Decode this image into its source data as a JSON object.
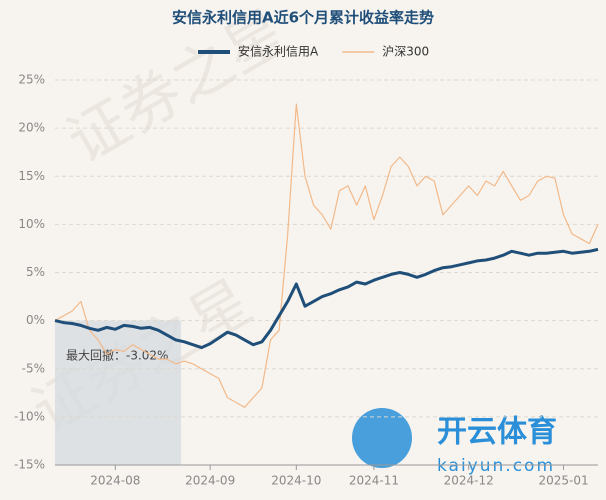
{
  "chart_data": {
    "type": "line",
    "title": "安信永利信用A近6个月累计收益率走势",
    "categories": [
      null,
      null,
      null,
      null,
      null,
      null,
      null,
      "2024-08",
      null,
      null,
      null,
      null,
      null,
      null,
      null,
      null,
      null,
      null,
      "2024-09",
      null,
      null,
      null,
      null,
      null,
      null,
      null,
      null,
      null,
      "2024-10",
      null,
      null,
      null,
      null,
      null,
      null,
      null,
      null,
      "2024-11",
      null,
      null,
      null,
      null,
      null,
      null,
      null,
      null,
      null,
      null,
      "2024-12",
      null,
      null,
      null,
      null,
      null,
      null,
      null,
      null,
      null,
      null,
      "2025-01",
      null,
      null,
      null,
      null
    ],
    "series": [
      {
        "name": "安信永利信用A",
        "color": "#1f4e79",
        "values": [
          0,
          -0.2,
          -0.3,
          -0.5,
          -0.8,
          -1,
          -0.7,
          -0.9,
          -0.5,
          -0.6,
          -0.8,
          -0.7,
          -1,
          -1.5,
          -2,
          -2.2,
          -2.5,
          -2.8,
          -2.4,
          -1.8,
          -1.2,
          -1.5,
          -2,
          -2.5,
          -2.2,
          -1,
          0.5,
          2,
          3.8,
          1.5,
          2,
          2.5,
          2.8,
          3.2,
          3.5,
          4,
          3.8,
          4.2,
          4.5,
          4.8,
          5,
          4.8,
          4.5,
          4.8,
          5.2,
          5.5,
          5.6,
          5.8,
          6,
          6.2,
          6.3,
          6.5,
          6.8,
          7.2,
          7,
          6.8,
          7,
          7,
          7.1,
          7.2,
          7,
          7.1,
          7.2,
          7.4
        ]
      },
      {
        "name": "沪深300",
        "color": "#f2b98a",
        "values": [
          0,
          0.5,
          1,
          2,
          -1,
          -2,
          -3.5,
          -3,
          -3.2,
          -2.5,
          -3,
          -3.5,
          -4,
          -4,
          -4.5,
          -4.2,
          -4.5,
          -5,
          -5.5,
          -6,
          -8,
          -8.5,
          -9,
          -8,
          -7,
          -2,
          -1,
          9,
          22.5,
          15,
          12,
          11,
          9.5,
          13.5,
          14,
          12,
          14,
          10.5,
          13,
          16,
          17,
          16,
          14,
          15,
          14.5,
          11,
          12,
          13,
          14,
          13,
          14.5,
          14,
          15.5,
          14,
          12.5,
          13,
          14.5,
          15,
          14.8,
          11,
          9,
          8.5,
          8,
          10
        ]
      }
    ],
    "ylim": [
      -15,
      25
    ],
    "yticks": [
      {
        "value": -15,
        "label": "-15%"
      },
      {
        "value": -10,
        "label": "-10%"
      },
      {
        "value": -5,
        "label": "-5%"
      },
      {
        "value": 0,
        "label": "0%"
      },
      {
        "value": 5,
        "label": "5%"
      },
      {
        "value": 10,
        "label": "10%"
      },
      {
        "value": 15,
        "label": "15%"
      },
      {
        "value": 20,
        "label": "20%"
      },
      {
        "value": 25,
        "label": "25%"
      }
    ],
    "grid": true,
    "annotation": "最大回撤：-3.02%",
    "watermark": "证券之星",
    "logo_text": "开云体育",
    "logo_url": "kaiyun.com"
  }
}
